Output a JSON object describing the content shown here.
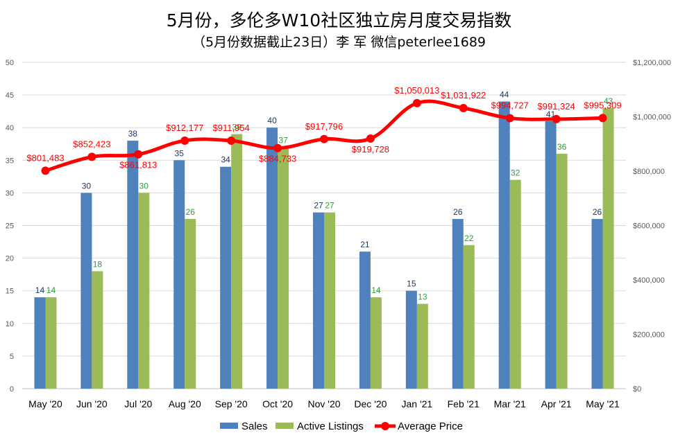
{
  "title": "5月份，多伦多W10社区独立房月度交易指数",
  "subtitle": "（5月份数据截止23日）李 军 微信peterlee1689",
  "colors": {
    "sales": "#4f81bd",
    "active": "#9bbb59",
    "price": "#ff0000",
    "grid": "#d9d9d9"
  },
  "chart_data": {
    "type": "bar",
    "categories": [
      "May '20",
      "Jun '20",
      "Jul '20",
      "Aug '20",
      "Sep '20",
      "Oct '20",
      "Nov '20",
      "Dec '20",
      "Jan '21",
      "Feb '21",
      "Mar '21",
      "Apr '21",
      "May '21"
    ],
    "series": [
      {
        "name": "Sales",
        "type": "bar",
        "axis": "left",
        "values": [
          14,
          30,
          38,
          35,
          34,
          40,
          27,
          21,
          15,
          26,
          44,
          41,
          26
        ]
      },
      {
        "name": "Active Listings",
        "type": "bar",
        "axis": "left",
        "values": [
          14,
          18,
          30,
          26,
          39,
          37,
          27,
          14,
          13,
          22,
          32,
          36,
          43
        ]
      },
      {
        "name": "Average Price",
        "type": "line",
        "axis": "right",
        "values": [
          801483,
          852423,
          861813,
          912177,
          911954,
          884733,
          917796,
          919728,
          1050013,
          1031922,
          994727,
          991324,
          995309
        ]
      }
    ],
    "price_labels": [
      "$801,483",
      "$852,423",
      "$861,813",
      "$912,177",
      "$911,954",
      "$884,733",
      "$917,796",
      "$919,728",
      "$1,050,013",
      "$1,031,922",
      "$994,727",
      "$991,324",
      "$995,309"
    ],
    "ylim_left": [
      0,
      50
    ],
    "yticks_left": [
      "0",
      "5",
      "10",
      "15",
      "20",
      "25",
      "30",
      "35",
      "40",
      "45",
      "50"
    ],
    "ylim_right": [
      0,
      1200000
    ],
    "yticks_right": [
      "$0",
      "$200,000",
      "$400,000",
      "$600,000",
      "$800,000",
      "$1,000,000",
      "$1,200,000"
    ],
    "grid": true,
    "legend_position": "bottom"
  }
}
